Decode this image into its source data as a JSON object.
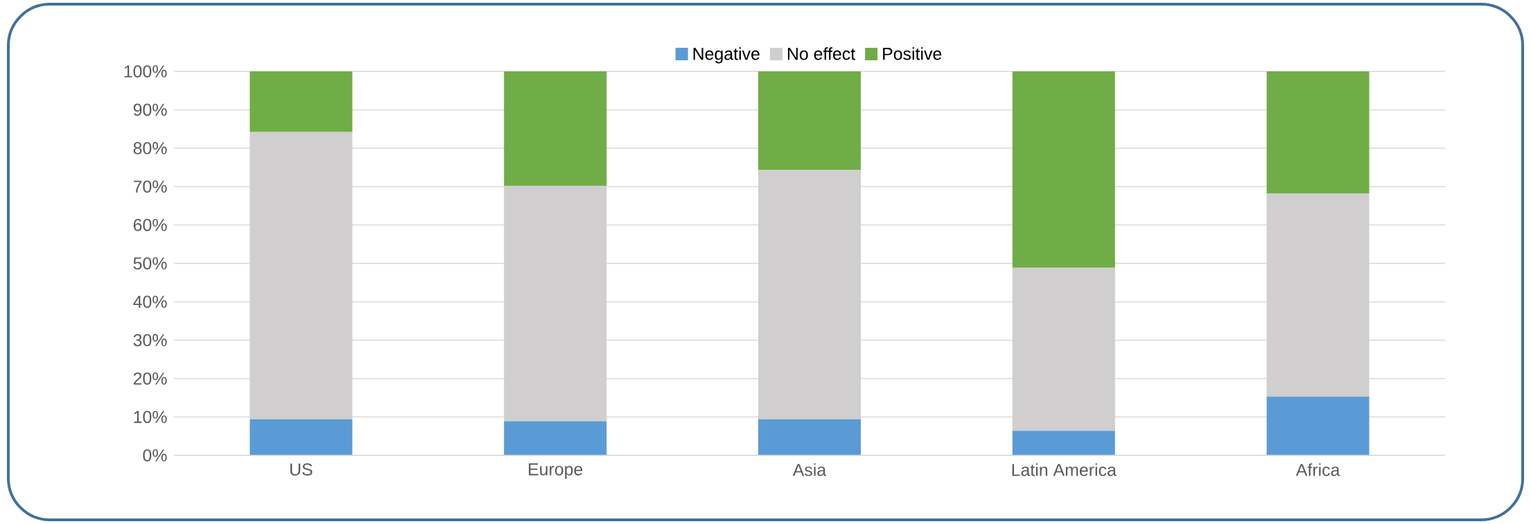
{
  "chart_data": {
    "type": "bar",
    "stacked": true,
    "categories": [
      "US",
      "Europe",
      "Asia",
      "Latin America",
      "Africa"
    ],
    "series": [
      {
        "name": "Negative",
        "color": "#5b9bd5",
        "values": [
          9.4,
          8.9,
          9.4,
          6.4,
          15.3
        ]
      },
      {
        "name": "No effect",
        "color": "#d0cece",
        "values": [
          74.8,
          61.3,
          64.9,
          42.5,
          52.9
        ]
      },
      {
        "name": "Positive",
        "color": "#70ad47",
        "values": [
          15.8,
          29.8,
          25.7,
          51.1,
          31.8
        ]
      }
    ],
    "ylim": [
      0,
      100
    ],
    "yticks": [
      {
        "value": 0,
        "label": "0%"
      },
      {
        "value": 10,
        "label": "10%"
      },
      {
        "value": 20,
        "label": "20%"
      },
      {
        "value": 30,
        "label": "30%"
      },
      {
        "value": 40,
        "label": "40%"
      },
      {
        "value": 50,
        "label": "50%"
      },
      {
        "value": 60,
        "label": "60%"
      },
      {
        "value": 70,
        "label": "70%"
      },
      {
        "value": 80,
        "label": "80%"
      },
      {
        "value": 90,
        "label": "90%"
      },
      {
        "value": 100,
        "label": "100%"
      }
    ],
    "grid": "y",
    "legend": "top"
  }
}
